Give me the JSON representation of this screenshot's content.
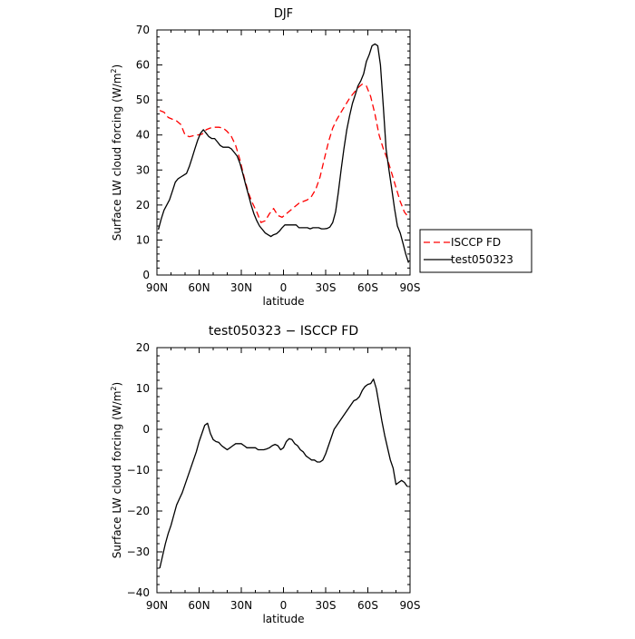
{
  "chart_data": [
    {
      "type": "line",
      "title": "DJF",
      "xlabel": "latitude",
      "ylabel": "Surface LW cloud forcing (W/m²)",
      "ylabel_parts": {
        "main": "Surface LW cloud forcing (W/m",
        "sup": "2",
        "end": ")"
      },
      "xlim": [
        90,
        -90
      ],
      "ylim": [
        0,
        70
      ],
      "x_ticks": [
        90,
        60,
        30,
        0,
        -30,
        -60,
        -90
      ],
      "x_tick_labels": [
        "90N",
        "60N",
        "30N",
        "0",
        "30S",
        "60S",
        "90S"
      ],
      "y_ticks": [
        0,
        10,
        20,
        30,
        40,
        50,
        60,
        70
      ],
      "y_tick_labels": [
        "0",
        "10",
        "20",
        "30",
        "40",
        "50",
        "60",
        "70"
      ],
      "legend_position": "right-bottom, outside",
      "series": [
        {
          "name": "ISCCP FD",
          "color": "#ff0000",
          "dash": "dashed",
          "x": [
            88,
            85,
            82,
            79,
            76,
            73,
            70,
            67,
            64,
            61,
            58,
            55,
            52,
            49,
            46,
            43,
            40,
            37,
            34,
            31,
            28,
            25,
            22,
            19,
            16,
            13,
            10,
            7,
            4,
            1,
            -2,
            -5,
            -8,
            -11,
            -14,
            -17,
            -20,
            -23,
            -26,
            -29,
            -32,
            -35,
            -38,
            -41,
            -44,
            -47,
            -50,
            -53,
            -56,
            -59,
            -62,
            -65,
            -68,
            -71,
            -74,
            -77,
            -80,
            -83,
            -86,
            -89
          ],
          "y": [
            47,
            46.5,
            45,
            44.5,
            44,
            43,
            40,
            39.5,
            39.8,
            40,
            40.2,
            41.5,
            42,
            42.2,
            42.2,
            42,
            41,
            39.5,
            37,
            33,
            28,
            23.5,
            20.5,
            18,
            15,
            15.5,
            17.5,
            19,
            17,
            16.5,
            17.5,
            18.5,
            19.5,
            20.5,
            21,
            21.5,
            22.5,
            24.5,
            28,
            33,
            38,
            42,
            44.5,
            46.5,
            48.5,
            50.5,
            52,
            53.5,
            54.5,
            54,
            51,
            46,
            40,
            36,
            33,
            29,
            25,
            21,
            18,
            16.5
          ]
        },
        {
          "name": "test050323",
          "color": "#000000",
          "dash": "solid",
          "x": [
            89,
            87,
            85,
            83,
            81,
            79,
            77,
            75,
            73,
            71,
            69,
            67,
            65,
            63,
            61,
            59,
            57,
            55,
            53,
            51,
            49,
            47,
            45,
            43,
            41,
            39,
            37,
            35,
            33,
            31,
            29,
            27,
            25,
            23,
            21,
            19,
            17,
            15,
            13,
            11,
            9,
            7,
            5,
            3,
            1,
            -1,
            -3,
            -5,
            -7,
            -9,
            -11,
            -13,
            -15,
            -17,
            -19,
            -21,
            -23,
            -25,
            -27,
            -29,
            -31,
            -33,
            -35,
            -37,
            -39,
            -41,
            -43,
            -45,
            -47,
            -49,
            -51,
            -53,
            -55,
            -57,
            -59,
            -61,
            -63,
            -65,
            -67,
            -69,
            -71,
            -73,
            -75,
            -77,
            -79,
            -81,
            -83,
            -85,
            -87,
            -89
          ],
          "y": [
            13,
            16,
            18.5,
            20,
            21.5,
            24,
            26.5,
            27.5,
            28,
            28.5,
            29,
            31,
            33.5,
            36,
            38.5,
            40.5,
            41.5,
            40.5,
            39.5,
            39,
            39,
            38,
            37,
            36.5,
            36.5,
            36.5,
            36,
            35,
            34,
            32,
            29,
            26,
            23,
            20,
            17.5,
            15.5,
            14,
            13,
            12,
            11.5,
            11,
            11.5,
            11.8,
            12.5,
            13.5,
            14.3,
            14.3,
            14.3,
            14.3,
            14.3,
            13.5,
            13.5,
            13.5,
            13.5,
            13.2,
            13.5,
            13.5,
            13.5,
            13.2,
            13.2,
            13.3,
            13.7,
            15,
            18,
            23.5,
            30,
            36,
            41.5,
            45.5,
            49,
            51.5,
            54,
            55.5,
            57.5,
            61,
            63,
            65.5,
            66,
            65.5,
            60,
            48,
            36,
            30,
            24.5,
            19,
            14,
            12,
            9,
            6,
            3.5
          ]
        }
      ]
    },
    {
      "type": "line",
      "title": "test050323 − ISCCP FD",
      "xlabel": "latitude",
      "ylabel": "Surface LW cloud forcing (W/m²)",
      "ylabel_parts": {
        "main": "Surface LW cloud forcing (W/m",
        "sup": "2",
        "end": ")"
      },
      "xlim": [
        90,
        -90
      ],
      "ylim": [
        -40,
        20
      ],
      "x_ticks": [
        90,
        60,
        30,
        0,
        -30,
        -60,
        -90
      ],
      "x_tick_labels": [
        "90N",
        "60N",
        "30N",
        "0",
        "30S",
        "60S",
        "90S"
      ],
      "y_ticks": [
        -40,
        -30,
        -20,
        -10,
        0,
        10,
        20
      ],
      "y_tick_labels": [
        "−40",
        "−30",
        "−20",
        "−10",
        "0",
        "10",
        "20"
      ],
      "series": [
        {
          "name": "",
          "color": "#000000",
          "dash": "solid",
          "x": [
            88,
            86,
            84,
            82,
            80,
            78,
            76,
            74,
            72,
            70,
            68,
            66,
            64,
            62,
            60,
            58,
            56,
            54,
            52,
            50,
            48,
            46,
            44,
            42,
            40,
            38,
            36,
            34,
            32,
            30,
            28,
            26,
            24,
            22,
            20,
            18,
            16,
            14,
            12,
            10,
            8,
            6,
            4,
            2,
            0,
            -2,
            -4,
            -6,
            -8,
            -10,
            -12,
            -14,
            -16,
            -18,
            -20,
            -22,
            -24,
            -26,
            -28,
            -30,
            -32,
            -34,
            -36,
            -38,
            -40,
            -42,
            -44,
            -46,
            -48,
            -50,
            -52,
            -54,
            -56,
            -58,
            -60,
            -62,
            -64,
            -66,
            -68,
            -70,
            -72,
            -74,
            -76,
            -78,
            -80,
            -82,
            -84,
            -86,
            -88
          ],
          "y": [
            -34,
            -31,
            -28,
            -25.5,
            -23.5,
            -21,
            -18.5,
            -17,
            -15.5,
            -13.5,
            -11.5,
            -9.5,
            -7.5,
            -5.5,
            -3,
            -1,
            1,
            1.5,
            -1,
            -2.5,
            -3,
            -3.2,
            -4,
            -4.5,
            -5,
            -4.5,
            -4,
            -3.5,
            -3.5,
            -3.5,
            -4,
            -4.5,
            -4.5,
            -4.5,
            -4.5,
            -5,
            -5,
            -5,
            -4.8,
            -4.5,
            -4,
            -3.7,
            -4,
            -5,
            -4.5,
            -3,
            -2.3,
            -2.5,
            -3.5,
            -4,
            -5,
            -5.5,
            -6.5,
            -7,
            -7.5,
            -7.5,
            -8,
            -8,
            -7.5,
            -6,
            -4,
            -2,
            0,
            1,
            2,
            3,
            4,
            5,
            6,
            7,
            7.3,
            8,
            9.5,
            10.5,
            11,
            11.2,
            12.3,
            10,
            6,
            2,
            -1.5,
            -4.5,
            -7.5,
            -9.5,
            -13.5,
            -13,
            -12.5,
            -13,
            -14
          ]
        }
      ]
    }
  ]
}
